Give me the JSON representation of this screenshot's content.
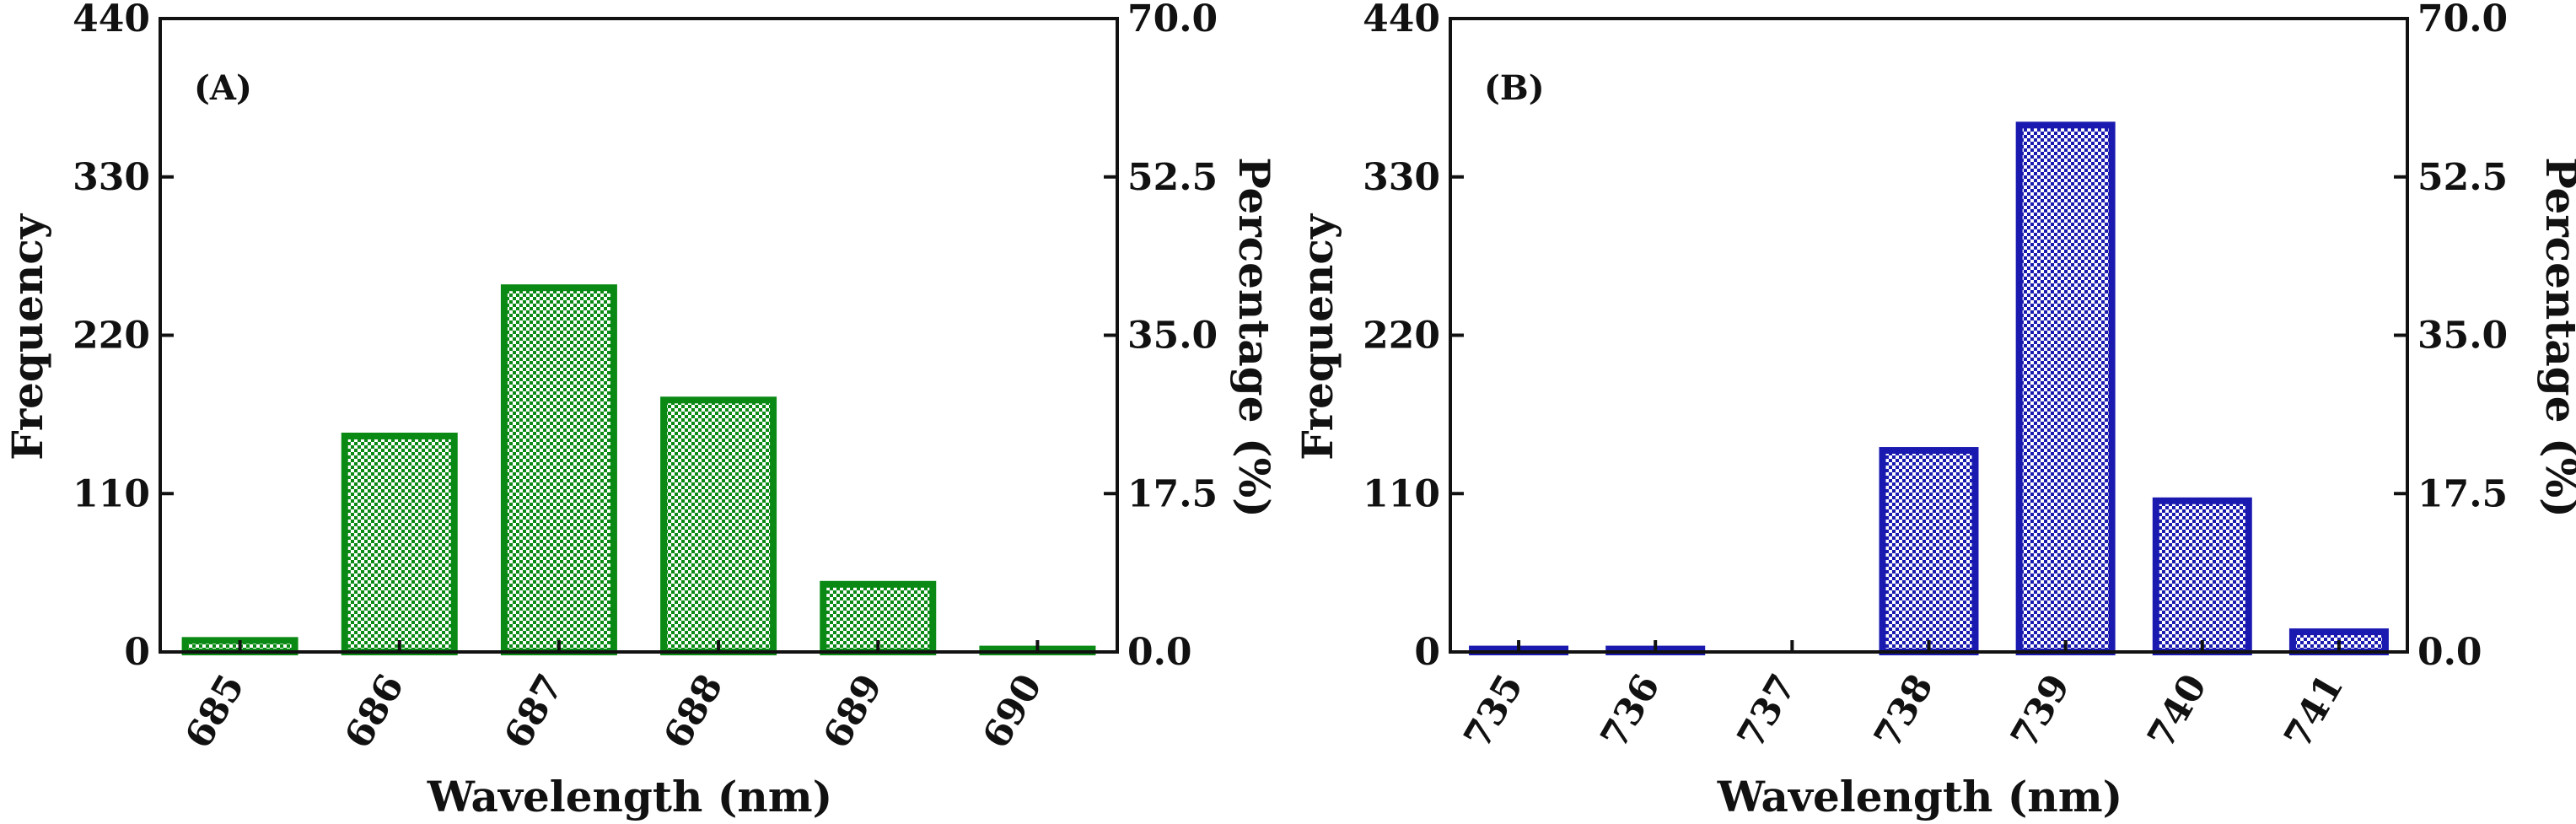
{
  "chart_data": [
    {
      "type": "bar",
      "panel_label": "(A)",
      "categories": [
        "685",
        "686",
        "687",
        "688",
        "689",
        "690"
      ],
      "values": [
        8,
        150,
        253,
        175,
        47,
        2
      ],
      "xlabel": "Wavelength (nm)",
      "ylabel": "Frequency",
      "ylabel_right": "Percentage (%)",
      "ylim": [
        0,
        440
      ],
      "yticks": [
        "0",
        "110",
        "220",
        "330",
        "440"
      ],
      "ylim_right": [
        0,
        70
      ],
      "yticks_right": [
        "0.0",
        "17.5",
        "35.0",
        "52.5",
        "70.0"
      ],
      "color": "#0a8a14",
      "grid": false
    },
    {
      "type": "bar",
      "panel_label": "(B)",
      "categories": [
        "735",
        "736",
        "737",
        "738",
        "739",
        "740",
        "741"
      ],
      "values": [
        2,
        2,
        0,
        140,
        366,
        105,
        14
      ],
      "xlabel": "Wavelength (nm)",
      "ylabel": "Frequency",
      "ylabel_right": "Percentage (%)",
      "ylim": [
        0,
        440
      ],
      "yticks": [
        "0",
        "110",
        "220",
        "330",
        "440"
      ],
      "ylim_right": [
        0,
        70
      ],
      "yticks_right": [
        "0.0",
        "17.5",
        "35.0",
        "52.5",
        "70.0"
      ],
      "color": "#1a1ab0",
      "grid": false
    }
  ]
}
